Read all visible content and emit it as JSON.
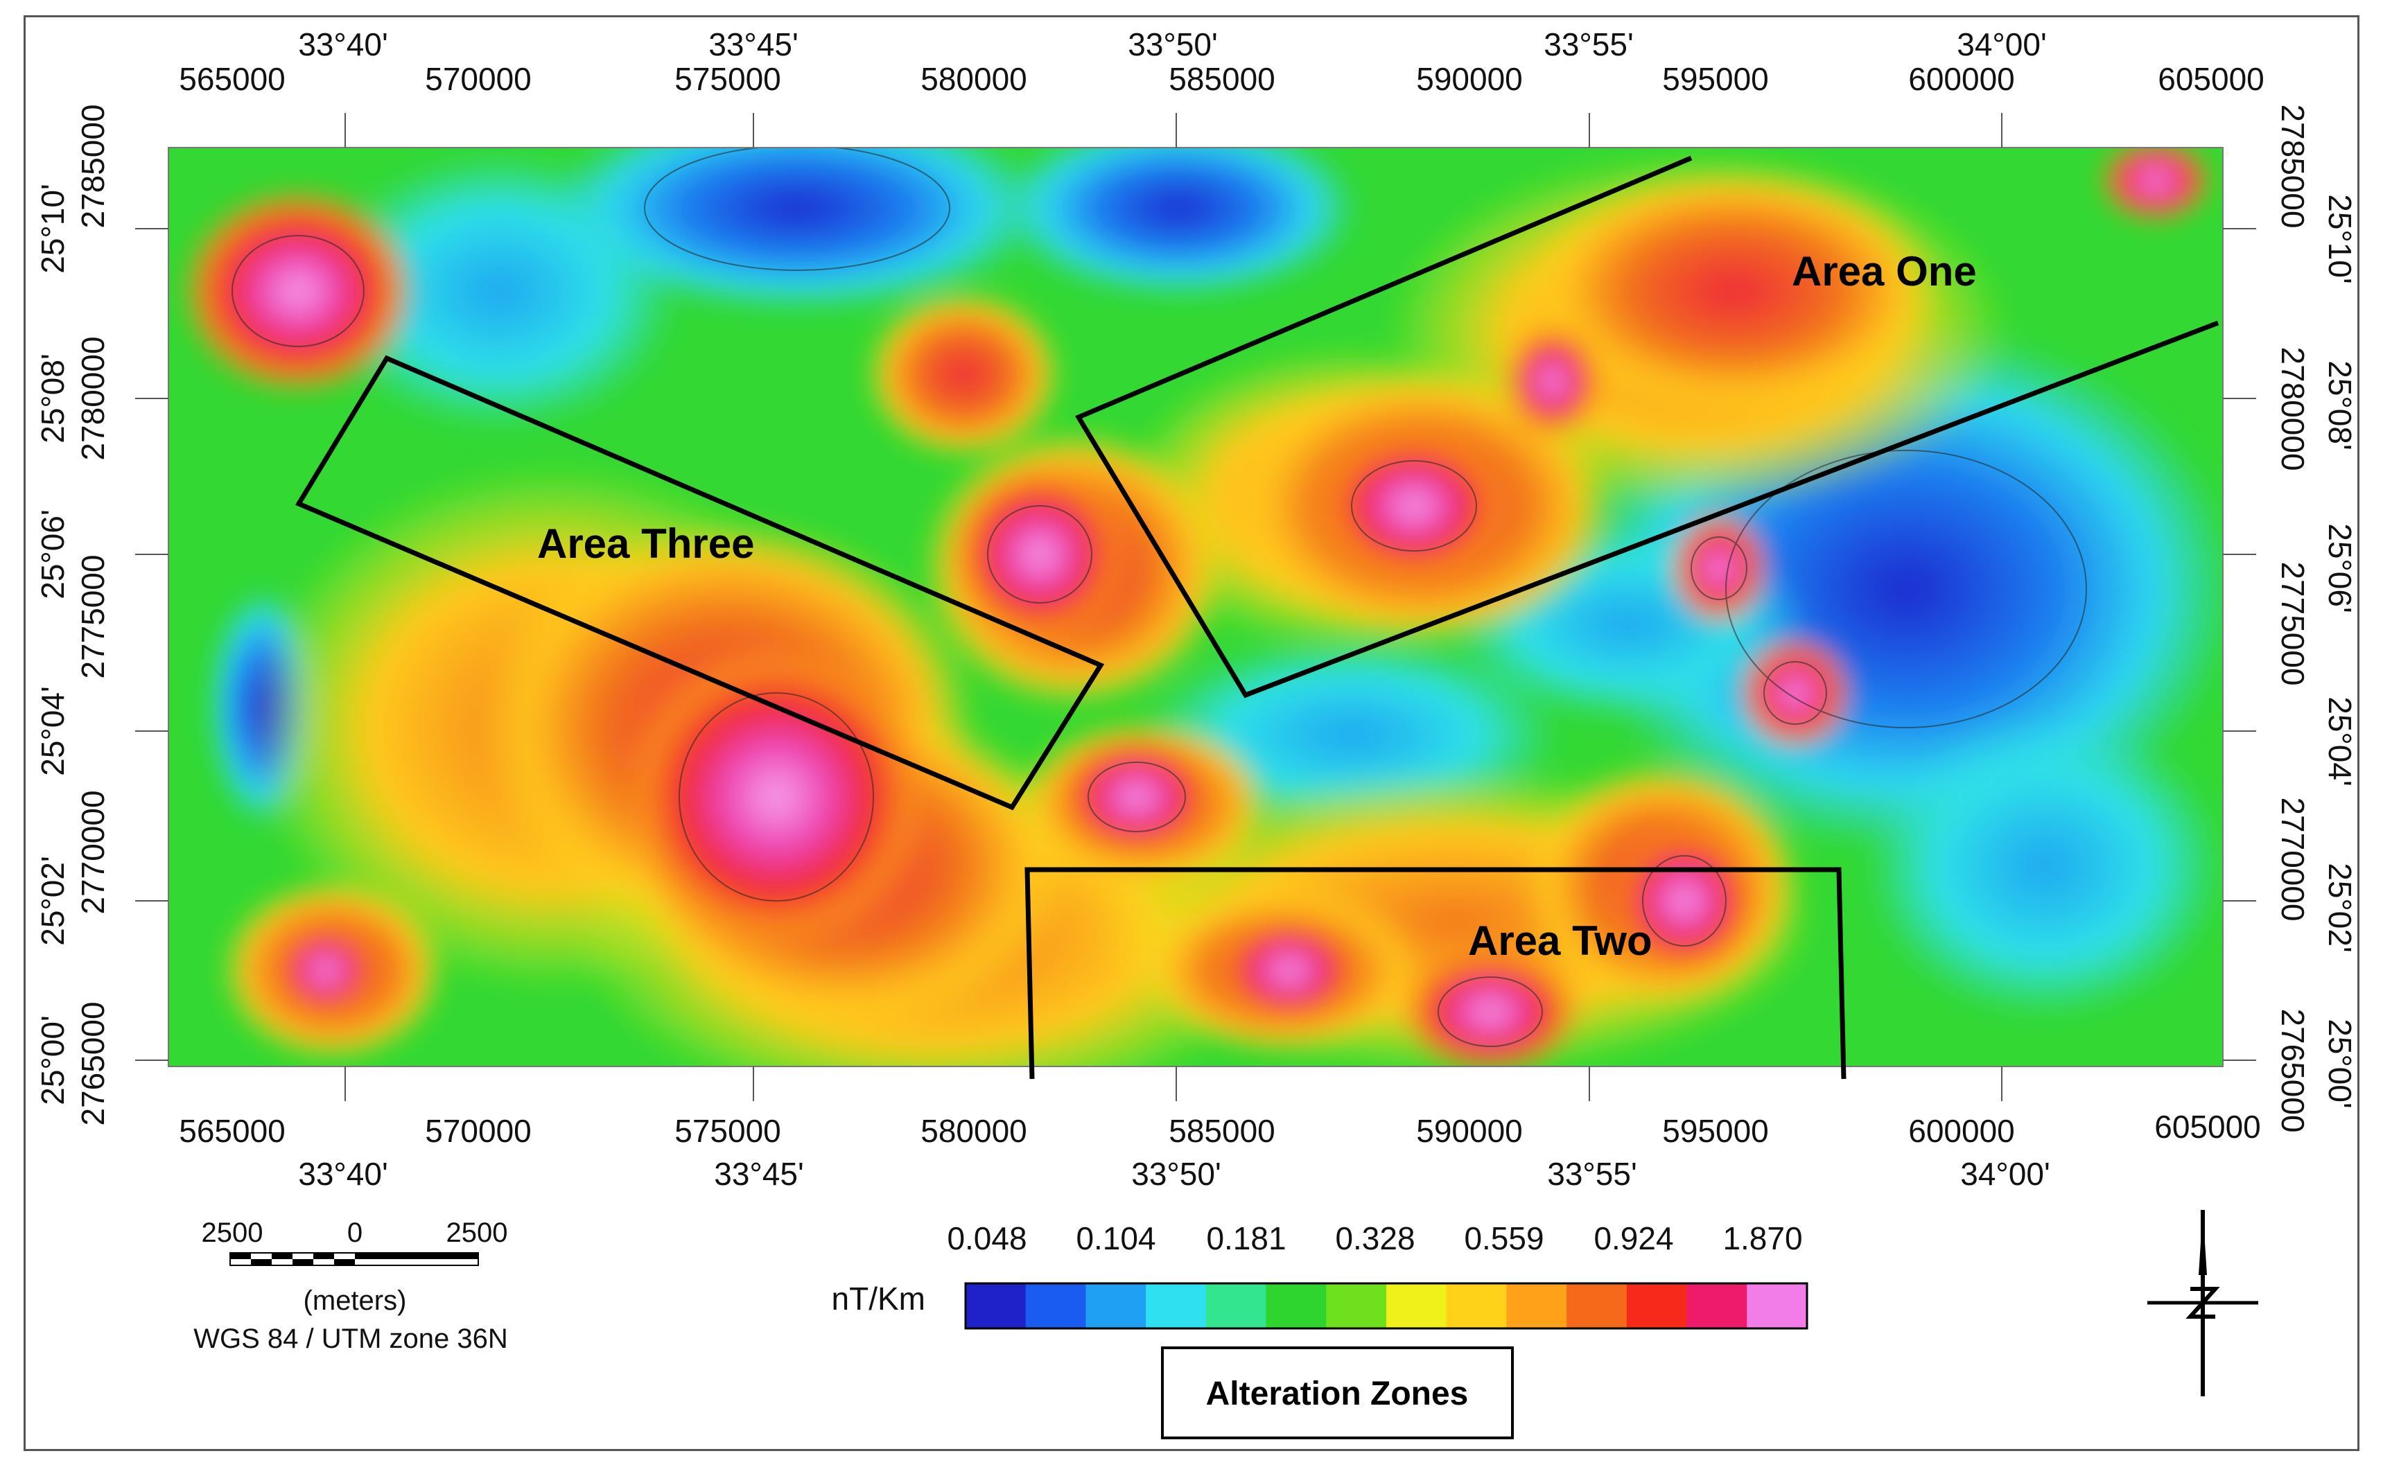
{
  "map": {
    "top_easting": [
      "565000",
      "570000",
      "575000",
      "580000",
      "585000",
      "590000",
      "595000",
      "600000",
      "605000"
    ],
    "bottom_easting": [
      "565000",
      "570000",
      "575000",
      "580000",
      "585000",
      "590000",
      "595000",
      "600000",
      "605000"
    ],
    "top_longitude": [
      "33°40'",
      "33°45'",
      "33°50'",
      "33°55'",
      "34°00'"
    ],
    "bottom_longitude": [
      "33°40'",
      "33°45'",
      "33°50'",
      "33°55'",
      "34°00'"
    ],
    "left_latitude": [
      "25°10'",
      "25°08'",
      "25°06'",
      "25°04'",
      "25°02'",
      "25°00'"
    ],
    "left_northing": [
      "2785000",
      "2780000",
      "2775000",
      "2770000",
      "2765000"
    ],
    "right_latitude": [
      "25°10'",
      "25°08'",
      "25°06'",
      "25°04'",
      "25°02'",
      "25°00'"
    ],
    "right_northing": [
      "2785000",
      "2780000",
      "2775000",
      "2770000",
      "2765000"
    ],
    "areas": [
      "Area One",
      "Area Two",
      "Area Three"
    ]
  },
  "scale_bar": {
    "labels": [
      "2500",
      "0",
      "2500"
    ],
    "unit": "(meters)",
    "projection": "WGS 84 / UTM zone 36N"
  },
  "legend": {
    "unit": "nT/Km",
    "breaks": [
      "0.048",
      "0.104",
      "0.181",
      "0.328",
      "0.559",
      "0.924",
      "1.870"
    ],
    "colors": [
      "#1e22c8",
      "#1a5cf0",
      "#1fa0f2",
      "#2ee0f0",
      "#33e58e",
      "#2fd52f",
      "#6ee01e",
      "#f0f01a",
      "#ffd21a",
      "#ffa21a",
      "#f46a1a",
      "#f52a1a",
      "#ee1a6a",
      "#f27ce8"
    ],
    "title": "Alteration Zones"
  },
  "north_arrow": {
    "icon": "north-arrow-icon"
  }
}
